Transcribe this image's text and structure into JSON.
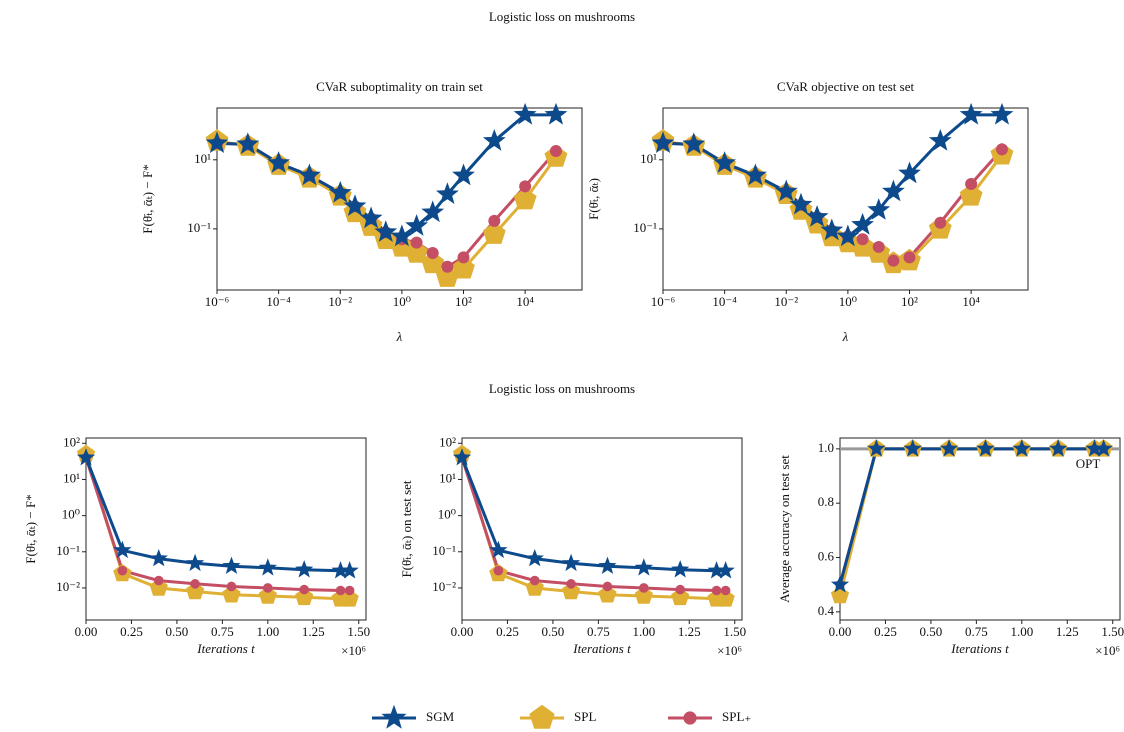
{
  "titles": [
    "Logistic loss on mushrooms",
    "Logistic loss on mushrooms"
  ],
  "legend": [
    {
      "name": "SGM",
      "color": "#0d4a8c",
      "marker": "star"
    },
    {
      "name": "SPL",
      "color": "#e0b034",
      "marker": "pentagon"
    },
    {
      "name": "SPL₊",
      "color": "#c44e64",
      "marker": "circle"
    }
  ],
  "chart_data": [
    {
      "type": "line",
      "title": "CVaR suboptimality on train set",
      "xlabel": "λ",
      "ylabel": "F(θ̄ₜ, ᾱₜ) − F*",
      "xscale": "log",
      "yscale": "log",
      "xlim": [
        1e-06,
        700000
      ],
      "ylim": [
        0.0017,
        316
      ],
      "xticks": [
        {
          "value": 1e-06,
          "label": "10⁻⁶"
        },
        {
          "value": 0.0001,
          "label": "10⁻⁴"
        },
        {
          "value": 0.01,
          "label": "10⁻²"
        },
        {
          "value": 1,
          "label": "10⁰"
        },
        {
          "value": 100,
          "label": "10²"
        },
        {
          "value": 10000,
          "label": "10⁴"
        }
      ],
      "yticks": [
        {
          "value": 0.1,
          "label": "10⁻¹"
        },
        {
          "value": 10,
          "label": "10¹"
        }
      ],
      "x": [
        1e-06,
        1e-05,
        0.0001,
        0.001,
        0.01,
        0.03,
        0.1,
        0.3,
        1,
        3,
        10,
        30,
        100,
        1000,
        10000,
        100000
      ],
      "series": [
        {
          "values": [
            30,
            28,
            8,
            3.5,
            1.1,
            0.45,
            0.2,
            0.08,
            0.06,
            0.12,
            0.3,
            1,
            3.5,
            35,
            200,
            200
          ]
        },
        {
          "values": [
            35,
            25,
            7,
            3,
            0.9,
            0.3,
            0.12,
            0.05,
            0.03,
            0.02,
            0.01,
            0.004,
            0.007,
            0.07,
            0.7,
            12
          ]
        },
        {
          "values": [
            30,
            28,
            8,
            3.5,
            1.1,
            0.45,
            0.2,
            0.08,
            0.05,
            0.04,
            0.02,
            0.008,
            0.015,
            0.17,
            1.7,
            18
          ]
        }
      ]
    },
    {
      "type": "line",
      "title": "CVaR objective on test set",
      "xlabel": "λ",
      "ylabel": "F(θ̄ₜ, ᾱₜ)",
      "xscale": "log",
      "yscale": "log",
      "xlim": [
        1e-06,
        700000
      ],
      "ylim": [
        0.0017,
        316
      ],
      "xticks": [
        {
          "value": 1e-06,
          "label": "10⁻⁶"
        },
        {
          "value": 0.0001,
          "label": "10⁻⁴"
        },
        {
          "value": 0.01,
          "label": "10⁻²"
        },
        {
          "value": 1,
          "label": "10⁰"
        },
        {
          "value": 100,
          "label": "10²"
        },
        {
          "value": 10000,
          "label": "10⁴"
        }
      ],
      "yticks": [
        {
          "value": 0.1,
          "label": "10⁻¹"
        },
        {
          "value": 10,
          "label": "10¹"
        }
      ],
      "x": [
        1e-06,
        1e-05,
        0.0001,
        0.001,
        0.01,
        0.03,
        0.1,
        0.3,
        1,
        3,
        10,
        30,
        100,
        1000,
        10000,
        100000
      ],
      "series": [
        {
          "values": [
            30,
            28,
            8,
            3.5,
            1.2,
            0.5,
            0.22,
            0.09,
            0.06,
            0.13,
            0.35,
            1.2,
            4,
            35,
            200,
            200
          ]
        },
        {
          "values": [
            35,
            25,
            7,
            3,
            1,
            0.35,
            0.14,
            0.06,
            0.04,
            0.03,
            0.02,
            0.01,
            0.012,
            0.1,
            0.9,
            14
          ]
        },
        {
          "values": [
            30,
            28,
            8,
            3.5,
            1.2,
            0.5,
            0.22,
            0.09,
            0.06,
            0.05,
            0.03,
            0.012,
            0.015,
            0.15,
            2,
            20
          ]
        }
      ]
    },
    {
      "type": "line",
      "xlabel": "Iterations t",
      "ylabel": "F(θ̄ₜ, ᾱₜ) − F*",
      "x_offset_label": "×10⁶",
      "xscale": "linear",
      "yscale": "log",
      "xlim": [
        0,
        1540000
      ],
      "ylim": [
        0.0013,
        140
      ],
      "xticks": [
        {
          "value": 0,
          "label": "0.00"
        },
        {
          "value": 250000,
          "label": "0.25"
        },
        {
          "value": 500000,
          "label": "0.50"
        },
        {
          "value": 750000,
          "label": "0.75"
        },
        {
          "value": 1000000,
          "label": "1.00"
        },
        {
          "value": 1250000,
          "label": "1.25"
        },
        {
          "value": 1500000,
          "label": "1.50"
        }
      ],
      "yticks": [
        {
          "value": 0.01,
          "label": "10⁻²"
        },
        {
          "value": 0.1,
          "label": "10⁻¹"
        },
        {
          "value": 1,
          "label": "10⁰"
        },
        {
          "value": 10,
          "label": "10¹"
        },
        {
          "value": 100,
          "label": "10²"
        }
      ],
      "x": [
        0,
        200000,
        400000,
        600000,
        800000,
        1000000,
        1200000,
        1400000,
        1450000
      ],
      "series": [
        {
          "values": [
            40,
            0.11,
            0.065,
            0.048,
            0.04,
            0.036,
            0.032,
            0.03,
            0.03
          ]
        },
        {
          "values": [
            50,
            0.025,
            0.01,
            0.008,
            0.0065,
            0.006,
            0.0055,
            0.005,
            0.005
          ]
        },
        {
          "values": [
            40,
            0.03,
            0.016,
            0.013,
            0.011,
            0.01,
            0.009,
            0.0085,
            0.0085
          ]
        }
      ]
    },
    {
      "type": "line",
      "xlabel": "Iterations t",
      "ylabel": "F(θ̄ₜ, ᾱₜ) on test set",
      "x_offset_label": "×10⁶",
      "xscale": "linear",
      "yscale": "log",
      "xlim": [
        0,
        1540000
      ],
      "ylim": [
        0.0013,
        140
      ],
      "xticks": [
        {
          "value": 0,
          "label": "0.00"
        },
        {
          "value": 250000,
          "label": "0.25"
        },
        {
          "value": 500000,
          "label": "0.50"
        },
        {
          "value": 750000,
          "label": "0.75"
        },
        {
          "value": 1000000,
          "label": "1.00"
        },
        {
          "value": 1250000,
          "label": "1.25"
        },
        {
          "value": 1500000,
          "label": "1.50"
        }
      ],
      "yticks": [
        {
          "value": 0.01,
          "label": "10⁻²"
        },
        {
          "value": 0.1,
          "label": "10⁻¹"
        },
        {
          "value": 1,
          "label": "10⁰"
        },
        {
          "value": 10,
          "label": "10¹"
        },
        {
          "value": 100,
          "label": "10²"
        }
      ],
      "x": [
        0,
        200000,
        400000,
        600000,
        800000,
        1000000,
        1200000,
        1400000,
        1450000
      ],
      "series": [
        {
          "values": [
            40,
            0.11,
            0.065,
            0.048,
            0.04,
            0.036,
            0.032,
            0.03,
            0.03
          ]
        },
        {
          "values": [
            50,
            0.025,
            0.01,
            0.008,
            0.0065,
            0.006,
            0.0055,
            0.005,
            0.005
          ]
        },
        {
          "values": [
            40,
            0.03,
            0.016,
            0.013,
            0.011,
            0.01,
            0.009,
            0.0085,
            0.0085
          ]
        }
      ]
    },
    {
      "type": "line",
      "xlabel": "Iterations t",
      "ylabel": "Average accuracy on test set",
      "x_offset_label": "×10⁶",
      "xscale": "linear",
      "yscale": "linear",
      "xlim": [
        0,
        1540000
      ],
      "ylim": [
        0.37,
        1.04
      ],
      "xticks": [
        {
          "value": 0,
          "label": "0.00"
        },
        {
          "value": 250000,
          "label": "0.25"
        },
        {
          "value": 500000,
          "label": "0.50"
        },
        {
          "value": 750000,
          "label": "0.75"
        },
        {
          "value": 1000000,
          "label": "1.00"
        },
        {
          "value": 1250000,
          "label": "1.25"
        },
        {
          "value": 1500000,
          "label": "1.50"
        }
      ],
      "yticks": [
        0.4,
        0.6,
        0.8,
        {
          "value": 1.0,
          "label": "1.0"
        }
      ],
      "hline": {
        "value": 1.0,
        "label": "OPT",
        "color": "#999999"
      },
      "x": [
        0,
        200000,
        400000,
        600000,
        800000,
        1000000,
        1200000,
        1400000,
        1450000
      ],
      "series": [
        {
          "values": [
            0.5,
            1,
            1,
            1,
            1,
            1,
            1,
            1,
            1
          ]
        },
        {
          "values": [
            0.46,
            1,
            1,
            1,
            1,
            1,
            1,
            1,
            1
          ]
        },
        {
          "values": [
            0.5,
            1,
            1,
            1,
            1,
            1,
            1,
            1,
            1
          ]
        }
      ]
    }
  ]
}
